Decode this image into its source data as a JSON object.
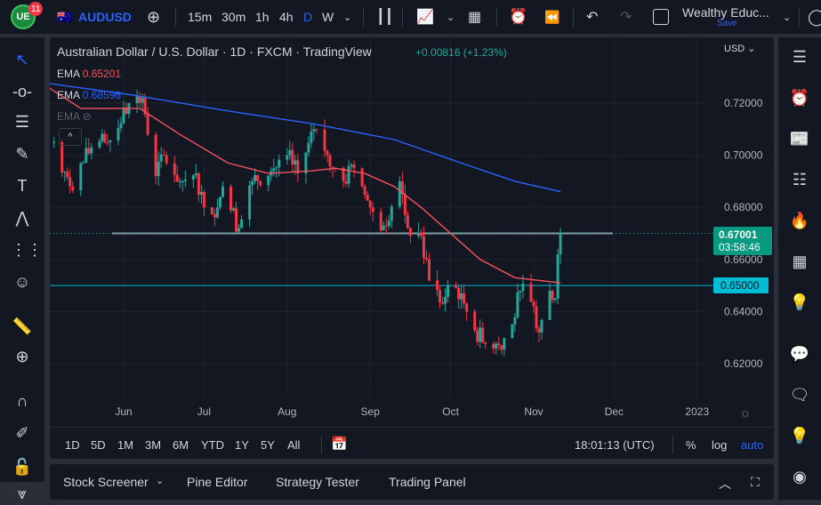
{
  "topbar": {
    "badge": "11",
    "symbol": "AUDUSD",
    "intervals": [
      "15m",
      "30m",
      "1h",
      "4h",
      "D",
      "W"
    ],
    "active_interval": "D",
    "layout_name": "Wealthy Educ...",
    "save": "Save"
  },
  "legend": {
    "title": "Australian Dollar / U.S. Dollar · 1D · FXCM · TradingView",
    "change": "+0.00816 (+1.23%)",
    "ema": [
      {
        "label": "EMA",
        "value": "0.65201",
        "color": "#f7525f"
      },
      {
        "label": "EMA",
        "value": "0.68596",
        "color": "#2962ff"
      },
      {
        "label": "EMA",
        "value": ""
      }
    ]
  },
  "currency": "USD",
  "price_labels": {
    "current": "0.67001",
    "countdown": "03:58:46",
    "level": "0.65000"
  },
  "range_bar": {
    "ranges": [
      "1D",
      "5D",
      "1M",
      "3M",
      "6M",
      "YTD",
      "1Y",
      "5Y",
      "All"
    ],
    "clock": "18:01:13 (UTC)",
    "percent": "%",
    "log": "log",
    "auto": "auto"
  },
  "bottom_panel": {
    "tabs": [
      "Stock Screener",
      "Pine Editor",
      "Strategy Tester",
      "Trading Panel"
    ]
  },
  "colors": {
    "up": "#26a69a",
    "down": "#f23645",
    "ema50": "#f7525f",
    "ema200": "#2962ff",
    "level": "#00bcd4",
    "accent": "#2962ff"
  },
  "chart_data": {
    "type": "candlestick",
    "yticks": [
      0.72,
      0.7,
      0.68,
      0.66,
      0.64,
      0.62
    ],
    "xticks": [
      "Jun",
      "Jul",
      "Aug",
      "Sep",
      "Oct",
      "Nov",
      "Dec",
      "2023"
    ],
    "ylim": [
      0.612,
      0.745
    ],
    "close_keypoints": [
      [
        "2022-05-06",
        0.705
      ],
      [
        "2022-05-12",
        0.688
      ],
      [
        "2022-05-20",
        0.703
      ],
      [
        "2022-05-26",
        0.705
      ],
      [
        "2022-06-03",
        0.72
      ],
      [
        "2022-06-08",
        0.722
      ],
      [
        "2022-06-13",
        0.692
      ],
      [
        "2022-06-16",
        0.7
      ],
      [
        "2022-06-22",
        0.69
      ],
      [
        "2022-06-28",
        0.693
      ],
      [
        "2022-07-01",
        0.68
      ],
      [
        "2022-07-06",
        0.68
      ],
      [
        "2022-07-08",
        0.688
      ],
      [
        "2022-07-14",
        0.672
      ],
      [
        "2022-07-19",
        0.69
      ],
      [
        "2022-07-27",
        0.695
      ],
      [
        "2022-08-01",
        0.7
      ],
      [
        "2022-08-05",
        0.693
      ],
      [
        "2022-08-11",
        0.71
      ],
      [
        "2022-08-16",
        0.7
      ],
      [
        "2022-08-22",
        0.69
      ],
      [
        "2022-08-26",
        0.695
      ],
      [
        "2022-09-01",
        0.68
      ],
      [
        "2022-09-06",
        0.673
      ],
      [
        "2022-09-12",
        0.69
      ],
      [
        "2022-09-15",
        0.672
      ],
      [
        "2022-09-20",
        0.669
      ],
      [
        "2022-09-23",
        0.652
      ],
      [
        "2022-09-28",
        0.643
      ],
      [
        "2022-09-30",
        0.65
      ],
      [
        "2022-10-05",
        0.647
      ],
      [
        "2022-10-07",
        0.64
      ],
      [
        "2022-10-13",
        0.628
      ],
      [
        "2022-10-19",
        0.627
      ],
      [
        "2022-10-24",
        0.635
      ],
      [
        "2022-10-27",
        0.648
      ],
      [
        "2022-11-01",
        0.642
      ],
      [
        "2022-11-03",
        0.632
      ],
      [
        "2022-11-07",
        0.648
      ],
      [
        "2022-11-09",
        0.645
      ],
      [
        "2022-11-10",
        0.662
      ],
      [
        "2022-11-11",
        0.67
      ]
    ],
    "ema50_keypoints": [
      [
        "2022-05-01",
        0.728
      ],
      [
        "2022-05-16",
        0.718
      ],
      [
        "2022-06-07",
        0.718
      ],
      [
        "2022-06-22",
        0.708
      ],
      [
        "2022-07-10",
        0.697
      ],
      [
        "2022-07-25",
        0.693
      ],
      [
        "2022-08-10",
        0.694
      ],
      [
        "2022-08-19",
        0.695
      ],
      [
        "2022-08-30",
        0.693
      ],
      [
        "2022-09-10",
        0.688
      ],
      [
        "2022-09-20",
        0.68
      ],
      [
        "2022-10-01",
        0.67
      ],
      [
        "2022-10-12",
        0.66
      ],
      [
        "2022-10-25",
        0.653
      ],
      [
        "2022-11-11",
        0.651
      ]
    ],
    "ema200_keypoints": [
      [
        "2022-05-01",
        0.728
      ],
      [
        "2022-06-05",
        0.723
      ],
      [
        "2022-07-10",
        0.717
      ],
      [
        "2022-08-11",
        0.712
      ],
      [
        "2022-09-10",
        0.706
      ],
      [
        "2022-10-05",
        0.697
      ],
      [
        "2022-10-25",
        0.69
      ],
      [
        "2022-11-11",
        0.686
      ]
    ],
    "horizontal_levels": [
      {
        "price": 0.67,
        "color": "#9598a1"
      },
      {
        "price": 0.65,
        "color": "#00bcd4"
      }
    ]
  }
}
